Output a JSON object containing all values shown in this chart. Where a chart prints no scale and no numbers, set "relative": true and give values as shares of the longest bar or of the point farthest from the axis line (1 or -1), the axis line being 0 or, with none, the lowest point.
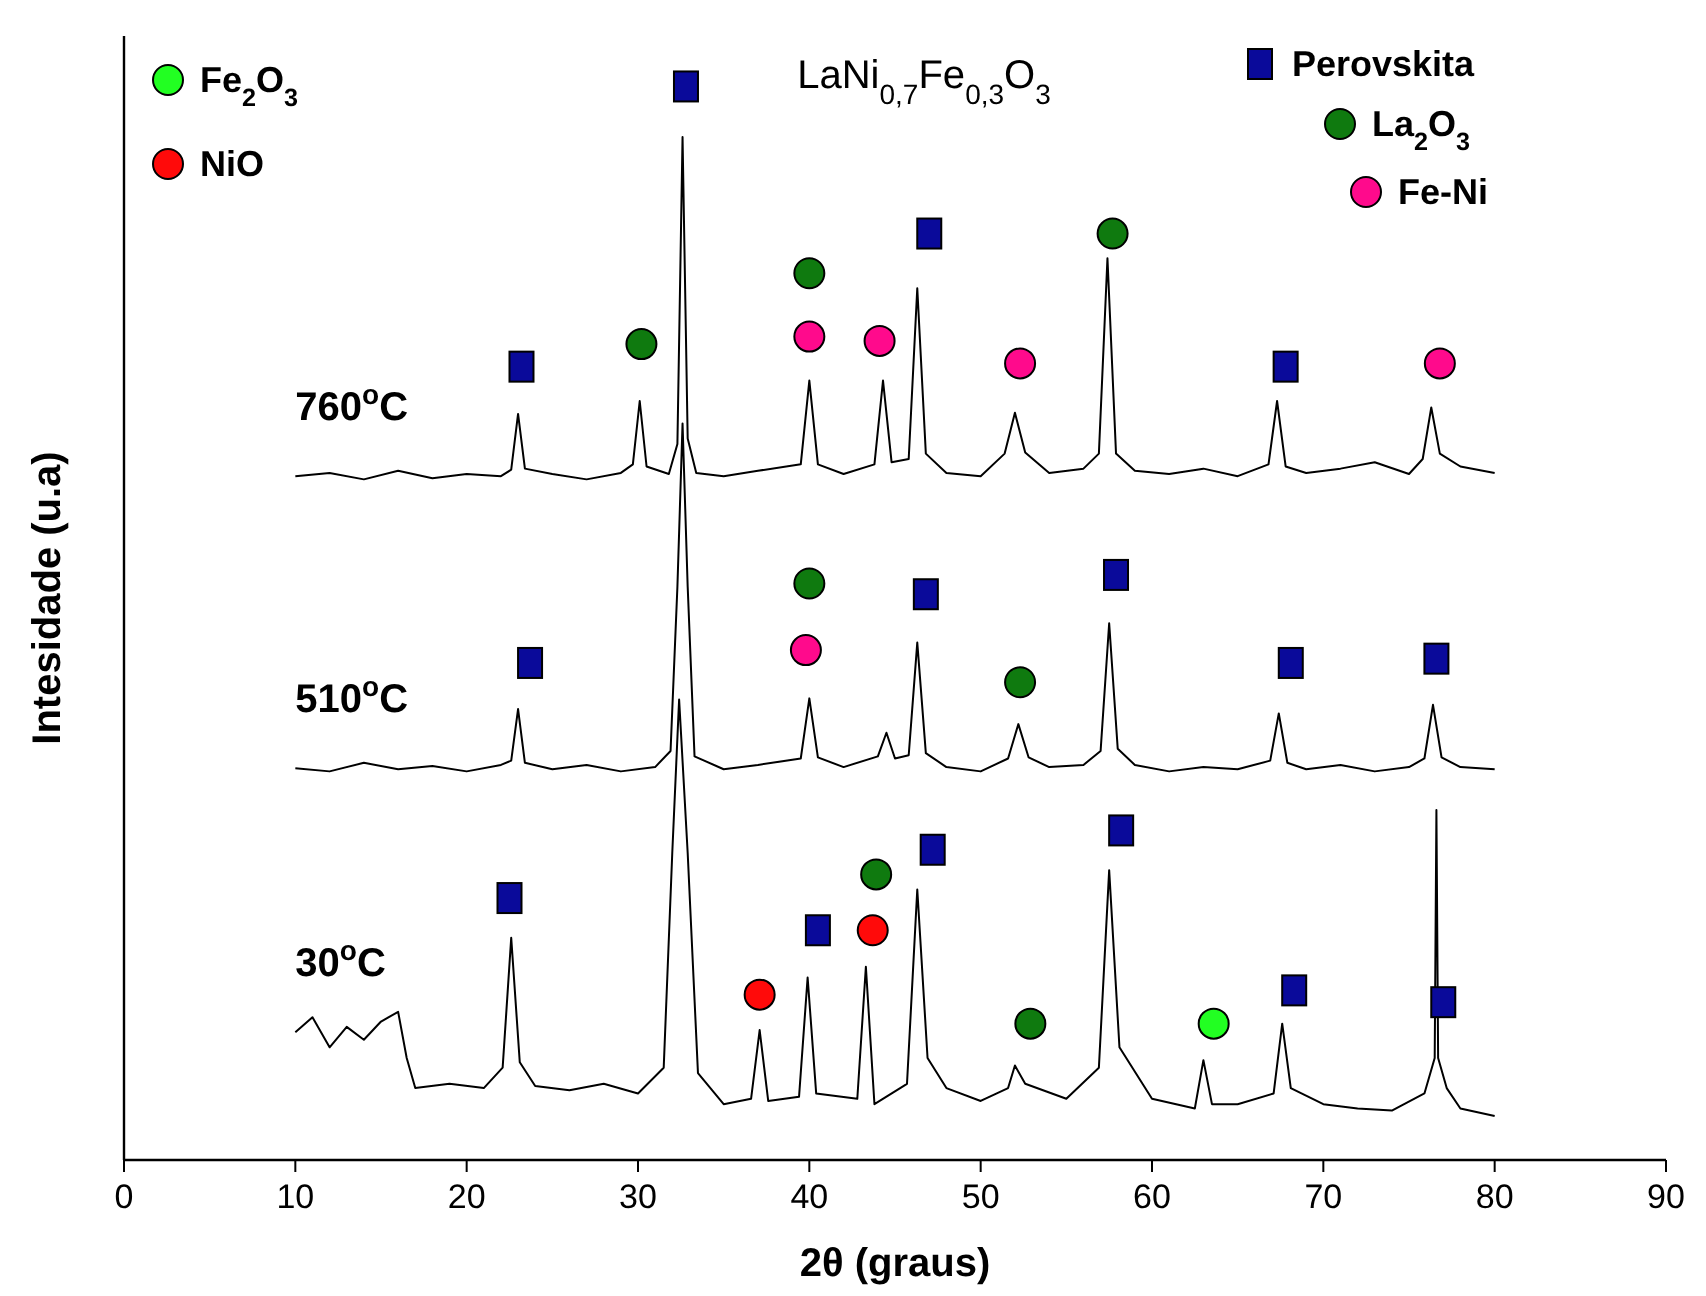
{
  "chart_data": {
    "type": "line",
    "relative": true,
    "title": "LaNi$_{0,7}$Fe$_{0,3}$O$_{3}$",
    "xlabel": "2θ (graus)",
    "ylabel": "Intesidade (u.a)",
    "xlim": [
      0,
      90
    ],
    "xticks": [
      0,
      10,
      20,
      30,
      40,
      50,
      60,
      70,
      80,
      90
    ],
    "legend": "top",
    "series": [
      {
        "name": "760$^{o}$C",
        "color": "#000000",
        "x": [
          10,
          12,
          14,
          16,
          18,
          20,
          22,
          22.6,
          23.0,
          23.4,
          25,
          27,
          29,
          29.7,
          30.1,
          30.5,
          31.8,
          32.3,
          32.6,
          32.9,
          33.4,
          35,
          37,
          39.5,
          40.0,
          40.5,
          42,
          43.8,
          44.3,
          44.8,
          45.8,
          46.3,
          46.8,
          48,
          50,
          51.4,
          52.0,
          52.6,
          54,
          56,
          56.9,
          57.4,
          57.9,
          59,
          61,
          63,
          65,
          66.8,
          67.3,
          67.8,
          69,
          71,
          73,
          75,
          75.8,
          76.3,
          76.8,
          78,
          80
        ],
        "values": [
          0.637,
          0.64,
          0.634,
          0.642,
          0.635,
          0.639,
          0.637,
          0.643,
          0.695,
          0.644,
          0.639,
          0.634,
          0.64,
          0.648,
          0.707,
          0.646,
          0.639,
          0.667,
          0.953,
          0.672,
          0.64,
          0.637,
          0.642,
          0.648,
          0.726,
          0.648,
          0.639,
          0.648,
          0.726,
          0.65,
          0.653,
          0.812,
          0.658,
          0.64,
          0.637,
          0.658,
          0.696,
          0.659,
          0.64,
          0.644,
          0.658,
          0.84,
          0.658,
          0.642,
          0.639,
          0.644,
          0.637,
          0.648,
          0.707,
          0.646,
          0.64,
          0.644,
          0.65,
          0.639,
          0.653,
          0.701,
          0.658,
          0.646,
          0.64
        ]
      },
      {
        "name": "510$^{o}$C",
        "color": "#000000",
        "x": [
          10,
          12,
          14,
          16,
          18,
          20,
          22,
          22.6,
          23.0,
          23.4,
          25,
          27,
          29,
          31,
          31.9,
          32.3,
          32.6,
          32.9,
          33.3,
          35,
          37,
          39.5,
          40.0,
          40.5,
          42,
          44.0,
          44.5,
          45.0,
          45.8,
          46.3,
          46.8,
          48,
          50,
          51.6,
          52.2,
          52.8,
          54,
          56,
          57.0,
          57.5,
          58.0,
          59,
          61,
          63,
          65,
          66.9,
          67.4,
          67.9,
          69,
          71,
          73,
          75,
          75.9,
          76.4,
          76.9,
          78,
          80
        ],
        "values": [
          0.365,
          0.362,
          0.37,
          0.364,
          0.367,
          0.362,
          0.368,
          0.372,
          0.42,
          0.37,
          0.364,
          0.368,
          0.362,
          0.366,
          0.381,
          0.534,
          0.686,
          0.534,
          0.376,
          0.364,
          0.368,
          0.374,
          0.43,
          0.375,
          0.366,
          0.376,
          0.398,
          0.374,
          0.377,
          0.482,
          0.379,
          0.366,
          0.362,
          0.374,
          0.406,
          0.375,
          0.366,
          0.368,
          0.381,
          0.5,
          0.383,
          0.368,
          0.362,
          0.366,
          0.364,
          0.372,
          0.416,
          0.37,
          0.364,
          0.368,
          0.362,
          0.366,
          0.374,
          0.424,
          0.375,
          0.366,
          0.364
        ]
      },
      {
        "name": "30$^{o}$C",
        "color": "#000000",
        "x": [
          10,
          11,
          12,
          13,
          14,
          15,
          16,
          16.5,
          17,
          19,
          21,
          22.1,
          22.6,
          23.1,
          24,
          26,
          28,
          30,
          31.5,
          32.0,
          32.4,
          32.9,
          33.5,
          35,
          36.6,
          37.1,
          37.6,
          39.4,
          39.9,
          40.4,
          42.8,
          43.3,
          43.8,
          45.7,
          46.3,
          46.9,
          48,
          50,
          51.6,
          52.0,
          52.6,
          55,
          56.9,
          57.5,
          58.1,
          60,
          62.5,
          63.0,
          63.5,
          65,
          67.1,
          67.6,
          68.1,
          70,
          72,
          74,
          75.9,
          76.5,
          76.6,
          76.7,
          77.2,
          78,
          80
        ],
        "values": [
          0.119,
          0.133,
          0.105,
          0.124,
          0.112,
          0.129,
          0.138,
          0.095,
          0.067,
          0.071,
          0.067,
          0.086,
          0.207,
          0.091,
          0.069,
          0.065,
          0.071,
          0.062,
          0.086,
          0.286,
          0.429,
          0.286,
          0.081,
          0.052,
          0.057,
          0.121,
          0.055,
          0.059,
          0.17,
          0.062,
          0.057,
          0.18,
          0.052,
          0.071,
          0.252,
          0.095,
          0.067,
          0.055,
          0.067,
          0.088,
          0.071,
          0.057,
          0.086,
          0.27,
          0.105,
          0.057,
          0.048,
          0.093,
          0.052,
          0.052,
          0.062,
          0.127,
          0.067,
          0.052,
          0.048,
          0.046,
          0.062,
          0.095,
          0.326,
          0.095,
          0.067,
          0.048,
          0.041
        ]
      },
      {
        "name": "Perovskita",
        "type": "scatter",
        "color": "#0a0a9a",
        "marker": "square",
        "x": [
          23.2,
          32.8,
          47.0,
          67.8,
          23.7,
          46.8,
          57.9,
          68.1,
          76.6,
          22.5,
          40.5,
          47.2,
          58.2,
          68.3,
          77.0
        ],
        "values": [
          0.739,
          1.0,
          0.863,
          0.739,
          0.463,
          0.527,
          0.545,
          0.463,
          0.467,
          0.244,
          0.214,
          0.289,
          0.307,
          0.158,
          0.147
        ]
      },
      {
        "name": "La$_{2}$O$_{3}$",
        "type": "scatter",
        "color": "#0f7a0f",
        "marker": "circle",
        "x": [
          30.2,
          40.0,
          57.7,
          40.0,
          52.3,
          43.9,
          52.9
        ],
        "values": [
          0.76,
          0.826,
          0.863,
          0.537,
          0.445,
          0.266,
          0.127
        ]
      },
      {
        "name": "Fe-Ni",
        "type": "scatter",
        "color": "#ff0a8c",
        "marker": "circle",
        "x": [
          40.0,
          44.1,
          52.3,
          76.8,
          39.8
        ],
        "values": [
          0.767,
          0.763,
          0.742,
          0.742,
          0.475
        ]
      },
      {
        "name": "NiO",
        "type": "scatter",
        "color": "#ff0a0a",
        "marker": "circle",
        "x": [
          37.1,
          43.7
        ],
        "values": [
          0.154,
          0.214
        ]
      },
      {
        "name": "Fe$_{2}$O$_{3}$",
        "type": "scatter",
        "color": "#22ff22",
        "marker": "circle",
        "x": [
          63.6
        ],
        "values": [
          0.127
        ]
      }
    ]
  }
}
